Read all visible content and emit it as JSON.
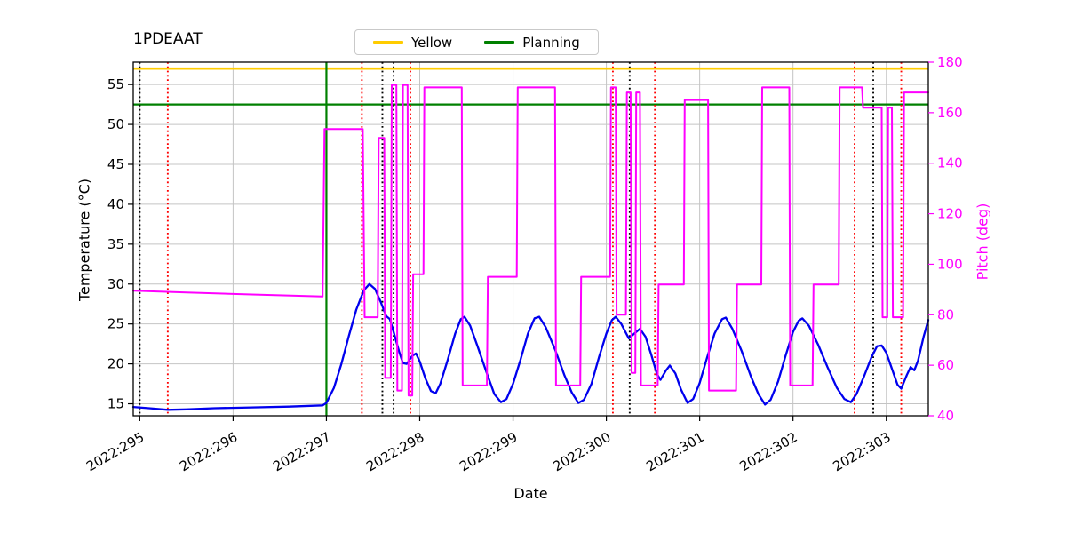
{
  "title": "1PDEAAT",
  "legend": {
    "items": [
      {
        "label": "Yellow",
        "color": "#ffcc00"
      },
      {
        "label": "Planning",
        "color": "#008000"
      }
    ]
  },
  "chart_data": {
    "type": "line",
    "title": "1PDEAAT",
    "xlabel": "Date",
    "ylabel_left": "Temperature (°C)",
    "ylabel_right": "Pitch (deg)",
    "legend_entries": [
      "Yellow",
      "Planning"
    ],
    "legend_position": "top-center",
    "grid": true,
    "x_range": [
      294.93,
      303.45
    ],
    "y_left_range": [
      13.5,
      57.8
    ],
    "y_right_range": [
      40,
      180
    ],
    "x_ticks": [
      {
        "value": 295,
        "label": "2022:295"
      },
      {
        "value": 296,
        "label": "2022:296"
      },
      {
        "value": 297,
        "label": "2022:297"
      },
      {
        "value": 298,
        "label": "2022:298"
      },
      {
        "value": 299,
        "label": "2022:299"
      },
      {
        "value": 300,
        "label": "2022:300"
      },
      {
        "value": 301,
        "label": "2022:301"
      },
      {
        "value": 302,
        "label": "2022:302"
      },
      {
        "value": 303,
        "label": "2022:303"
      }
    ],
    "y_left_ticks": [
      {
        "value": 15,
        "label": "15"
      },
      {
        "value": 20,
        "label": "20"
      },
      {
        "value": 25,
        "label": "25"
      },
      {
        "value": 30,
        "label": "30"
      },
      {
        "value": 35,
        "label": "35"
      },
      {
        "value": 40,
        "label": "40"
      },
      {
        "value": 45,
        "label": "45"
      },
      {
        "value": 50,
        "label": "50"
      },
      {
        "value": 55,
        "label": "55"
      }
    ],
    "y_right_ticks": [
      {
        "value": 40,
        "label": "40"
      },
      {
        "value": 60,
        "label": "60"
      },
      {
        "value": 80,
        "label": "80"
      },
      {
        "value": 100,
        "label": "100"
      },
      {
        "value": 120,
        "label": "120"
      },
      {
        "value": 140,
        "label": "140"
      },
      {
        "value": 160,
        "label": "160"
      },
      {
        "value": 180,
        "label": "180"
      }
    ],
    "colors": {
      "grid": "#c4c4c4",
      "temperature": "#0000ee",
      "pitch": "#ff00ff",
      "yellow_limit": "#ffcc00",
      "planning_limit": "#008000",
      "red_marker": "#ff0000",
      "black_marker": "#000000"
    },
    "limits": [
      {
        "name": "yellow-limit",
        "label": "Yellow",
        "value": 57,
        "color": "#ffcc00",
        "width": 2.6
      },
      {
        "name": "planning-limit",
        "label": "Planning",
        "value": 52.5,
        "color": "#008000",
        "width": 2.2
      }
    ],
    "vlines": [
      {
        "name": "green-solid-line",
        "x": 297.0,
        "color": "#008000",
        "style": "solid",
        "width": 2.2
      },
      {
        "name": "black-dotted-line-1",
        "x": 295.0,
        "color": "#000000",
        "style": "dotted",
        "width": 1.9
      },
      {
        "name": "black-dotted-line-2",
        "x": 297.6,
        "color": "#000000",
        "style": "dotted",
        "width": 1.9
      },
      {
        "name": "black-dotted-line-3",
        "x": 297.72,
        "color": "#000000",
        "style": "dotted",
        "width": 1.9
      },
      {
        "name": "black-dotted-line-4",
        "x": 300.25,
        "color": "#000000",
        "style": "dotted",
        "width": 1.9
      },
      {
        "name": "black-dotted-line-5",
        "x": 302.86,
        "color": "#000000",
        "style": "dotted",
        "width": 1.9
      },
      {
        "name": "red-dotted-line-1",
        "x": 295.3,
        "color": "#ff0000",
        "style": "dotted",
        "width": 1.9
      },
      {
        "name": "red-dotted-line-2",
        "x": 297.38,
        "color": "#ff0000",
        "style": "dotted",
        "width": 1.9
      },
      {
        "name": "red-dotted-line-3",
        "x": 297.9,
        "color": "#ff0000",
        "style": "dotted",
        "width": 1.9
      },
      {
        "name": "red-dotted-line-4",
        "x": 300.07,
        "color": "#ff0000",
        "style": "dotted",
        "width": 1.9
      },
      {
        "name": "red-dotted-line-5",
        "x": 300.52,
        "color": "#ff0000",
        "style": "dotted",
        "width": 1.9
      },
      {
        "name": "red-dotted-line-6",
        "x": 302.66,
        "color": "#ff0000",
        "style": "dotted",
        "width": 1.9
      },
      {
        "name": "red-dotted-line-7",
        "x": 303.16,
        "color": "#ff0000",
        "style": "dotted",
        "width": 1.9
      }
    ],
    "series": [
      {
        "name": "temperature",
        "label": "Temperature (°C)",
        "axis": "left",
        "color": "#0000ee",
        "width": 2.3,
        "points": [
          [
            294.93,
            14.6
          ],
          [
            295.1,
            14.45
          ],
          [
            295.3,
            14.25
          ],
          [
            295.5,
            14.3
          ],
          [
            295.8,
            14.45
          ],
          [
            296.2,
            14.55
          ],
          [
            296.6,
            14.65
          ],
          [
            296.96,
            14.8
          ],
          [
            297.0,
            15.1
          ],
          [
            297.08,
            17.0
          ],
          [
            297.16,
            20.0
          ],
          [
            297.24,
            23.5
          ],
          [
            297.32,
            26.8
          ],
          [
            297.4,
            29.2
          ],
          [
            297.46,
            30.0
          ],
          [
            297.52,
            29.4
          ],
          [
            297.58,
            27.8
          ],
          [
            297.64,
            26.0
          ],
          [
            297.68,
            25.6
          ],
          [
            297.72,
            24.0
          ],
          [
            297.78,
            21.5
          ],
          [
            297.82,
            20.1
          ],
          [
            297.86,
            20.0
          ],
          [
            297.92,
            21.0
          ],
          [
            297.96,
            21.3
          ],
          [
            298.0,
            20.3
          ],
          [
            298.06,
            18.2
          ],
          [
            298.12,
            16.6
          ],
          [
            298.17,
            16.3
          ],
          [
            298.22,
            17.5
          ],
          [
            298.3,
            20.5
          ],
          [
            298.38,
            23.8
          ],
          [
            298.44,
            25.6
          ],
          [
            298.48,
            25.9
          ],
          [
            298.54,
            24.8
          ],
          [
            298.62,
            22.2
          ],
          [
            298.72,
            18.8
          ],
          [
            298.8,
            16.2
          ],
          [
            298.87,
            15.2
          ],
          [
            298.93,
            15.6
          ],
          [
            299.0,
            17.5
          ],
          [
            299.08,
            20.5
          ],
          [
            299.16,
            23.8
          ],
          [
            299.23,
            25.7
          ],
          [
            299.28,
            25.9
          ],
          [
            299.35,
            24.6
          ],
          [
            299.45,
            21.8
          ],
          [
            299.55,
            18.6
          ],
          [
            299.63,
            16.4
          ],
          [
            299.7,
            15.1
          ],
          [
            299.76,
            15.5
          ],
          [
            299.84,
            17.5
          ],
          [
            299.92,
            20.8
          ],
          [
            300.0,
            23.8
          ],
          [
            300.06,
            25.5
          ],
          [
            300.1,
            25.9
          ],
          [
            300.16,
            25.0
          ],
          [
            300.24,
            23.2
          ],
          [
            300.3,
            23.8
          ],
          [
            300.36,
            24.4
          ],
          [
            300.42,
            23.4
          ],
          [
            300.48,
            21.2
          ],
          [
            300.54,
            18.8
          ],
          [
            300.58,
            18.0
          ],
          [
            300.64,
            19.2
          ],
          [
            300.68,
            19.8
          ],
          [
            300.74,
            18.8
          ],
          [
            300.8,
            16.8
          ],
          [
            300.87,
            15.1
          ],
          [
            300.93,
            15.6
          ],
          [
            301.0,
            17.6
          ],
          [
            301.08,
            20.8
          ],
          [
            301.16,
            23.8
          ],
          [
            301.24,
            25.6
          ],
          [
            301.28,
            25.8
          ],
          [
            301.35,
            24.4
          ],
          [
            301.45,
            21.6
          ],
          [
            301.55,
            18.4
          ],
          [
            301.63,
            16.2
          ],
          [
            301.7,
            14.9
          ],
          [
            301.76,
            15.5
          ],
          [
            301.84,
            17.8
          ],
          [
            301.92,
            21.0
          ],
          [
            302.0,
            24.0
          ],
          [
            302.06,
            25.4
          ],
          [
            302.1,
            25.7
          ],
          [
            302.17,
            24.8
          ],
          [
            302.27,
            22.4
          ],
          [
            302.37,
            19.6
          ],
          [
            302.47,
            17.0
          ],
          [
            302.55,
            15.6
          ],
          [
            302.62,
            15.2
          ],
          [
            302.68,
            16.2
          ],
          [
            302.76,
            18.4
          ],
          [
            302.84,
            20.8
          ],
          [
            302.9,
            22.2
          ],
          [
            302.95,
            22.3
          ],
          [
            303.0,
            21.4
          ],
          [
            303.06,
            19.4
          ],
          [
            303.12,
            17.4
          ],
          [
            303.16,
            16.9
          ],
          [
            303.22,
            18.6
          ],
          [
            303.26,
            19.6
          ],
          [
            303.3,
            19.2
          ],
          [
            303.34,
            20.4
          ],
          [
            303.4,
            23.4
          ],
          [
            303.45,
            25.5
          ]
        ]
      },
      {
        "name": "pitch",
        "label": "Pitch (deg)",
        "axis": "right",
        "color": "#ff00ff",
        "width": 2.0,
        "points": [
          [
            294.93,
            89.5
          ],
          [
            295.5,
            88.8
          ],
          [
            296.2,
            88.0
          ],
          [
            296.96,
            87.2
          ],
          [
            296.98,
            153.5
          ],
          [
            297.39,
            153.5
          ],
          [
            297.41,
            79
          ],
          [
            297.55,
            79
          ],
          [
            297.56,
            150
          ],
          [
            297.62,
            150
          ],
          [
            297.63,
            55
          ],
          [
            297.69,
            55
          ],
          [
            297.7,
            171
          ],
          [
            297.75,
            171
          ],
          [
            297.76,
            50
          ],
          [
            297.81,
            50
          ],
          [
            297.82,
            171
          ],
          [
            297.87,
            171
          ],
          [
            297.88,
            48
          ],
          [
            297.92,
            48
          ],
          [
            297.93,
            96
          ],
          [
            298.04,
            96
          ],
          [
            298.05,
            170
          ],
          [
            298.45,
            170
          ],
          [
            298.46,
            52
          ],
          [
            298.72,
            52
          ],
          [
            298.73,
            95
          ],
          [
            299.04,
            95
          ],
          [
            299.05,
            170
          ],
          [
            299.45,
            170
          ],
          [
            299.46,
            52
          ],
          [
            299.72,
            52
          ],
          [
            299.73,
            95
          ],
          [
            300.04,
            95
          ],
          [
            300.05,
            170
          ],
          [
            300.1,
            170
          ],
          [
            300.11,
            80
          ],
          [
            300.21,
            80
          ],
          [
            300.22,
            168
          ],
          [
            300.26,
            168
          ],
          [
            300.27,
            57
          ],
          [
            300.31,
            57
          ],
          [
            300.32,
            168
          ],
          [
            300.36,
            168
          ],
          [
            300.37,
            52
          ],
          [
            300.55,
            52
          ],
          [
            300.56,
            92
          ],
          [
            300.83,
            92
          ],
          [
            300.84,
            165
          ],
          [
            301.09,
            165
          ],
          [
            301.1,
            50
          ],
          [
            301.39,
            50
          ],
          [
            301.4,
            92
          ],
          [
            301.66,
            92
          ],
          [
            301.67,
            170
          ],
          [
            301.96,
            170
          ],
          [
            301.97,
            52
          ],
          [
            302.21,
            52
          ],
          [
            302.22,
            92
          ],
          [
            302.49,
            92
          ],
          [
            302.5,
            170
          ],
          [
            302.74,
            170
          ],
          [
            302.75,
            162
          ],
          [
            302.95,
            162
          ],
          [
            302.96,
            79
          ],
          [
            303.01,
            79
          ],
          [
            303.02,
            162
          ],
          [
            303.06,
            162
          ],
          [
            303.07,
            79
          ],
          [
            303.18,
            79
          ],
          [
            303.19,
            168
          ],
          [
            303.45,
            168
          ]
        ]
      }
    ]
  }
}
